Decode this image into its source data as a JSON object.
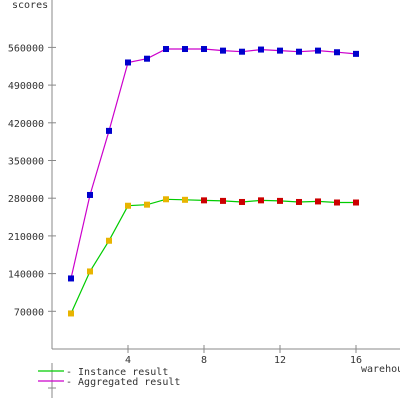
{
  "chart_data": {
    "type": "line",
    "ylabel": "scores",
    "xlabel": "warehouses",
    "xlim": [
      0,
      18
    ],
    "ylim": [
      0,
      630000
    ],
    "x_ticks": [
      4,
      8,
      12,
      16
    ],
    "y_ticks": [
      70000,
      140000,
      210000,
      280000,
      350000,
      420000,
      490000,
      560000
    ],
    "series": [
      {
        "name": "- Instance result",
        "color": "#00cc00",
        "x": [
          1,
          2,
          3,
          4,
          5,
          6,
          7,
          8,
          9,
          10,
          11,
          12,
          13,
          14,
          15,
          16
        ],
        "values": [
          66000,
          144000,
          201000,
          266000,
          268000,
          278000,
          277000,
          276000,
          275000,
          273000,
          276000,
          275000,
          273000,
          274000,
          272000,
          272000
        ],
        "marker_colors": [
          "#e8b400",
          "#e8b400",
          "#e8b400",
          "#e8b400",
          "#e8b400",
          "#e8b400",
          "#e8b400",
          "#cc0000",
          "#cc0000",
          "#cc0000",
          "#cc0000",
          "#cc0000",
          "#cc0000",
          "#cc0000",
          "#cc0000",
          "#cc0000"
        ]
      },
      {
        "name": "- Aggregated result",
        "color": "#cc00cc",
        "x": [
          1,
          2,
          3,
          4,
          5,
          6,
          7,
          8,
          9,
          10,
          11,
          12,
          13,
          14,
          15,
          16
        ],
        "values": [
          131000,
          286000,
          405000,
          532000,
          539000,
          557000,
          557000,
          557000,
          554000,
          552000,
          556000,
          554000,
          552000,
          554000,
          551000,
          548000
        ],
        "marker_colors": [
          "#0000cc",
          "#0000cc",
          "#0000cc",
          "#0000cc",
          "#0000cc",
          "#0000cc",
          "#0000cc",
          "#0000cc",
          "#0000cc",
          "#0000cc",
          "#0000cc",
          "#0000cc",
          "#0000cc",
          "#0000cc",
          "#0000cc",
          "#0000cc"
        ]
      }
    ],
    "legend_position": "bottom-left",
    "grid": false
  }
}
